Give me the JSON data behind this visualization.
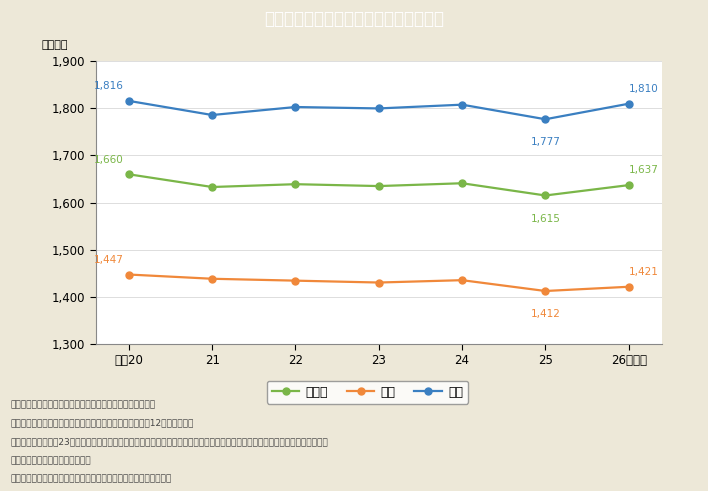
{
  "title": "Ｉ－３－２図　年間総実労働時間の推移",
  "title_bg_color": "#2ab5c8",
  "title_text_color": "#ffffff",
  "bg_color": "#ede8d8",
  "plot_bg_color": "#ffffff",
  "x_labels": [
    "平成20",
    "21",
    "22",
    "23",
    "24",
    "25",
    "26（年）"
  ],
  "x_positions": [
    0,
    1,
    2,
    3,
    4,
    5,
    6
  ],
  "y_label": "（時間）",
  "ylim": [
    1300,
    1900
  ],
  "yticks": [
    1300,
    1400,
    1500,
    1600,
    1700,
    1800,
    1900
  ],
  "label_offsets": {
    "男女計": {
      "0": [
        5,
        8,
        "right"
      ],
      "5": [
        0,
        -13,
        "center"
      ],
      "6": [
        0,
        6,
        "center"
      ]
    },
    "女性": {
      "0": [
        5,
        8,
        "right"
      ],
      "5": [
        0,
        -13,
        "center"
      ],
      "6": [
        0,
        6,
        "center"
      ]
    },
    "男性": {
      "0": [
        5,
        8,
        "right"
      ],
      "5": [
        0,
        -13,
        "center"
      ],
      "6": [
        0,
        6,
        "center"
      ]
    }
  },
  "series": {
    "男女計": {
      "values": [
        1660,
        1633,
        1639,
        1635,
        1641,
        1615,
        1637
      ],
      "color": "#7ab648",
      "labeled_indices": [
        0,
        5,
        6
      ],
      "labeled_values": [
        1660,
        1615,
        1637
      ]
    },
    "女性": {
      "values": [
        1447,
        1438,
        1434,
        1430,
        1435,
        1412,
        1421
      ],
      "color": "#f0883a",
      "labeled_indices": [
        0,
        5,
        6
      ],
      "labeled_values": [
        1447,
        1412,
        1421
      ]
    },
    "男性": {
      "values": [
        1816,
        1786,
        1803,
        1800,
        1808,
        1777,
        1810
      ],
      "color": "#3a7fc1",
      "labeled_indices": [
        0,
        5,
        6
      ],
      "labeled_values": [
        1816,
        1777,
        1810
      ]
    }
  },
  "legend_order": [
    "男女計",
    "女性",
    "男性"
  ],
  "notes_line1": "（備考）　１．厚生労働省「毎月勤労統計調査」より作成。",
  "notes_line2": "　　　　　２．年間総実労働時間は，各年の１月平均値を12倍して算出。",
  "notes_line3": "　　　　　３．平成23年３〜４月分（宮城県は５月分も含む）について，岩手県，宮城県及び福島県の被災３県を中心に一部調査",
  "notes_line4": "　　　　　　　を中止している。",
  "notes_line5": "　　　　　４．数値は一般労働者及びパートタイム労働者の合計。"
}
